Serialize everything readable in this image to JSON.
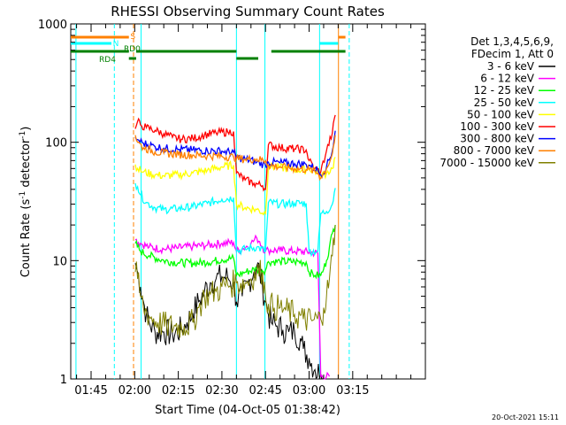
{
  "chart_data": {
    "type": "line",
    "title": "RHESSI Observing Summary Count Rates",
    "xlabel": "Start Time (04-Oct-05 01:38:42)",
    "ylabel": "Count Rate (s⁻¹ detector⁻¹)",
    "ylabel_parts": {
      "main": "Count Rate (s",
      "sup1": "-1",
      "mid": " detector",
      "sup2": "-1",
      "end": ")"
    },
    "yscale": "log",
    "ylim": [
      1,
      1000
    ],
    "xlim_min": [
      98,
      220
    ],
    "x_unit": "minutes after 00:00 UT",
    "xticks": [
      {
        "t": 105,
        "label": "01:45"
      },
      {
        "t": 120,
        "label": "02:00"
      },
      {
        "t": 135,
        "label": "02:15"
      },
      {
        "t": 150,
        "label": "02:30"
      },
      {
        "t": 165,
        "label": "02:45"
      },
      {
        "t": 180,
        "label": "03:00"
      },
      {
        "t": 195,
        "label": "03:15"
      }
    ],
    "yticks": [
      {
        "v": 1,
        "label": "1"
      },
      {
        "v": 10,
        "label": "10"
      },
      {
        "v": 100,
        "label": "100"
      },
      {
        "v": 1000,
        "label": "1000"
      }
    ],
    "legend_header": [
      "Det 1,3,4,5,6,9,",
      "FDecim 1, Att 0"
    ],
    "series": [
      {
        "name": "3 - 6 keV",
        "color": "#000000",
        "points": [
          [
            120.2,
            9.5
          ],
          [
            121,
            8
          ],
          [
            122,
            6
          ],
          [
            123,
            4.5
          ],
          [
            124,
            3.5
          ],
          [
            125,
            3
          ],
          [
            127,
            2.5
          ],
          [
            130,
            2.5
          ],
          [
            133,
            2.4
          ],
          [
            136,
            2.6
          ],
          [
            138,
            3
          ],
          [
            140,
            3.6
          ],
          [
            142,
            4.5
          ],
          [
            144,
            5.5
          ],
          [
            146,
            6.5
          ],
          [
            148,
            7
          ],
          [
            150,
            7.3
          ],
          [
            152,
            7.2
          ],
          [
            154,
            6.5
          ],
          [
            155,
            4.5
          ],
          [
            157,
            5
          ],
          [
            159,
            6.5
          ],
          [
            161,
            8
          ],
          [
            162,
            9
          ],
          [
            163,
            8
          ],
          [
            164,
            6
          ],
          [
            165,
            4.5
          ],
          [
            166,
            3.5
          ],
          [
            167,
            3
          ],
          [
            169,
            2.8
          ],
          [
            171,
            2.6
          ],
          [
            173,
            2.5
          ],
          [
            175,
            2.5
          ],
          [
            177,
            2.2
          ],
          [
            178,
            1.8
          ],
          [
            180,
            1.5
          ],
          [
            182,
            1.2
          ],
          [
            184,
            1.1
          ],
          [
            185,
            1.05
          ]
        ]
      },
      {
        "name": "6 - 12 keV",
        "color": "#ff00ff",
        "points": [
          [
            120.2,
            15
          ],
          [
            122,
            14
          ],
          [
            125,
            13
          ],
          [
            130,
            12.5
          ],
          [
            135,
            12.8
          ],
          [
            140,
            13.2
          ],
          [
            145,
            13.5
          ],
          [
            150,
            14
          ],
          [
            154,
            14.2
          ],
          [
            155,
            12
          ],
          [
            157,
            12.5
          ],
          [
            160,
            14
          ],
          [
            162,
            15.5
          ],
          [
            163,
            14.5
          ],
          [
            164,
            13
          ],
          [
            165,
            12
          ],
          [
            166,
            12.3
          ],
          [
            170,
            12.2
          ],
          [
            175,
            12
          ],
          [
            180,
            11.8
          ],
          [
            183,
            11.5
          ],
          [
            184,
            1.05
          ],
          [
            187,
            1.05
          ]
        ]
      },
      {
        "name": "12 - 25 keV",
        "color": "#00ff00",
        "points": [
          [
            120.2,
            14
          ],
          [
            122,
            12
          ],
          [
            125,
            11
          ],
          [
            130,
            10
          ],
          [
            135,
            9.6
          ],
          [
            140,
            9.5
          ],
          [
            145,
            9.7
          ],
          [
            150,
            10.2
          ],
          [
            154,
            10.5
          ],
          [
            155,
            7.5
          ],
          [
            158,
            8
          ],
          [
            162,
            8.5
          ],
          [
            165,
            8.3
          ],
          [
            166,
            9.8
          ],
          [
            170,
            9.8
          ],
          [
            175,
            9.8
          ],
          [
            179,
            9.7
          ],
          [
            180,
            8
          ],
          [
            182,
            7.5
          ],
          [
            184,
            7.5
          ],
          [
            185,
            8.5
          ],
          [
            186,
            10
          ],
          [
            187,
            13
          ],
          [
            188,
            17
          ],
          [
            189,
            20
          ]
        ]
      },
      {
        "name": "25 - 50 keV",
        "color": "#00ffff",
        "points": [
          [
            120.2,
            45
          ],
          [
            121,
            42
          ],
          [
            122,
            36
          ],
          [
            124,
            31
          ],
          [
            127,
            28
          ],
          [
            130,
            27
          ],
          [
            135,
            27.5
          ],
          [
            140,
            28.5
          ],
          [
            145,
            30.5
          ],
          [
            150,
            33
          ],
          [
            154,
            34
          ],
          [
            155,
            12
          ],
          [
            158,
            12.5
          ],
          [
            162,
            13
          ],
          [
            165,
            12
          ],
          [
            166,
            31
          ],
          [
            170,
            30
          ],
          [
            175,
            30.5
          ],
          [
            179,
            30.5
          ],
          [
            180,
            12
          ],
          [
            183,
            12
          ],
          [
            184,
            25
          ],
          [
            186,
            26
          ],
          [
            188,
            30
          ],
          [
            189,
            41
          ]
        ]
      },
      {
        "name": "50 - 100 keV",
        "color": "#ffff00",
        "points": [
          [
            120.2,
            65
          ],
          [
            121,
            60
          ],
          [
            123,
            56
          ],
          [
            127,
            53
          ],
          [
            130,
            52
          ],
          [
            135,
            53
          ],
          [
            140,
            55
          ],
          [
            145,
            58
          ],
          [
            150,
            62
          ],
          [
            154,
            64
          ],
          [
            155,
            30
          ],
          [
            158,
            28
          ],
          [
            162,
            27
          ],
          [
            165,
            25
          ],
          [
            166,
            63
          ],
          [
            170,
            61
          ],
          [
            175,
            59
          ],
          [
            179,
            58
          ],
          [
            180,
            60
          ],
          [
            183,
            56
          ],
          [
            184,
            52
          ],
          [
            186,
            55
          ],
          [
            188,
            60
          ],
          [
            189,
            75
          ]
        ]
      },
      {
        "name": "100 - 300 keV",
        "color": "#ff0000",
        "points": [
          [
            120.2,
            130
          ],
          [
            121,
            150
          ],
          [
            122,
            140
          ],
          [
            124,
            133
          ],
          [
            127,
            126
          ],
          [
            130,
            118
          ],
          [
            133,
            110
          ],
          [
            136,
            106
          ],
          [
            140,
            108
          ],
          [
            144,
            115
          ],
          [
            148,
            120
          ],
          [
            152,
            122
          ],
          [
            154,
            123
          ],
          [
            155,
            55
          ],
          [
            158,
            48
          ],
          [
            161,
            45
          ],
          [
            164,
            43
          ],
          [
            165,
            40
          ],
          [
            166,
            95
          ],
          [
            170,
            90
          ],
          [
            175,
            88
          ],
          [
            179,
            86
          ],
          [
            180,
            70
          ],
          [
            182,
            60
          ],
          [
            184,
            56
          ],
          [
            186,
            85
          ],
          [
            188,
            120
          ],
          [
            189,
            170
          ]
        ]
      },
      {
        "name": "300 - 800 keV",
        "color": "#0000ff",
        "points": [
          [
            120.2,
            110
          ],
          [
            121,
            105
          ],
          [
            123,
            98
          ],
          [
            127,
            92
          ],
          [
            130,
            89
          ],
          [
            135,
            87
          ],
          [
            140,
            86
          ],
          [
            145,
            85
          ],
          [
            150,
            84
          ],
          [
            154,
            82
          ],
          [
            155,
            75
          ],
          [
            158,
            72
          ],
          [
            162,
            68
          ],
          [
            165,
            64
          ],
          [
            166,
            68
          ],
          [
            170,
            67
          ],
          [
            175,
            66
          ],
          [
            179,
            65
          ],
          [
            180,
            64
          ],
          [
            183,
            58
          ],
          [
            184,
            53
          ],
          [
            186,
            62
          ],
          [
            188,
            85
          ],
          [
            189,
            125
          ]
        ]
      },
      {
        "name": "800 - 7000 keV",
        "color": "#ff8000",
        "points": [
          [
            120.2,
            115
          ],
          [
            121,
            100
          ],
          [
            123,
            90
          ],
          [
            127,
            83
          ],
          [
            130,
            81
          ],
          [
            135,
            79
          ],
          [
            140,
            78
          ],
          [
            145,
            77
          ],
          [
            150,
            76
          ],
          [
            154,
            75
          ],
          [
            155,
            73
          ],
          [
            158,
            72
          ],
          [
            162,
            72
          ],
          [
            165,
            70
          ],
          [
            166,
            64
          ],
          [
            170,
            62
          ],
          [
            175,
            60
          ],
          [
            179,
            59
          ],
          [
            180,
            59
          ],
          [
            183,
            55
          ],
          [
            184,
            50
          ],
          [
            186,
            60
          ],
          [
            188,
            80
          ],
          [
            189,
            115
          ]
        ]
      },
      {
        "name": "7000 - 15000 keV",
        "color": "#808000",
        "points": [
          [
            120.2,
            8
          ],
          [
            121,
            7
          ],
          [
            122,
            5
          ],
          [
            123,
            4
          ],
          [
            125,
            3.4
          ],
          [
            128,
            3
          ],
          [
            131,
            2.8
          ],
          [
            134,
            2.8
          ],
          [
            137,
            2.8
          ],
          [
            140,
            3
          ],
          [
            142,
            4
          ],
          [
            144,
            5
          ],
          [
            146,
            5.2
          ],
          [
            148,
            5.5
          ],
          [
            150,
            6
          ],
          [
            152,
            6.2
          ],
          [
            155,
            6.5
          ],
          [
            158,
            6.5
          ],
          [
            160,
            7
          ],
          [
            162,
            8
          ],
          [
            164,
            8
          ],
          [
            165,
            5
          ],
          [
            166,
            4.3
          ],
          [
            168,
            4
          ],
          [
            170,
            4
          ],
          [
            172,
            3.8
          ],
          [
            175,
            3.5
          ],
          [
            178,
            3.2
          ],
          [
            181,
            3.1
          ],
          [
            184,
            3.2
          ],
          [
            185,
            4
          ],
          [
            186,
            5
          ],
          [
            187,
            7
          ],
          [
            188,
            11
          ],
          [
            189,
            20
          ]
        ]
      }
    ],
    "status_flags": {
      "S": {
        "label": "S",
        "color": "#ff8000",
        "segments": [
          [
            98,
            118
          ],
          [
            190,
            192.5
          ]
        ]
      },
      "N": {
        "label": "N",
        "color": "#00ffff",
        "segments": [
          [
            98,
            112
          ],
          [
            183.5,
            190
          ]
        ]
      },
      "RD": {
        "color": "#008000",
        "labels": [
          {
            "t": 113.5,
            "text": "RD4"
          },
          {
            "t": 122,
            "text": "RD0"
          }
        ],
        "high": [
          [
            98,
            118
          ],
          [
            120.5,
            155
          ],
          [
            167,
            192.5
          ]
        ],
        "low": [
          [
            118,
            120.5
          ],
          [
            155,
            162.5
          ]
        ]
      }
    },
    "vertical_markers": [
      {
        "t": 99.8,
        "color": "#00ffff",
        "dashed": false
      },
      {
        "t": 113,
        "color": "#00ffff",
        "dashed": true
      },
      {
        "t": 119.6,
        "color": "#ff8000",
        "dashed": true
      },
      {
        "t": 122.2,
        "color": "#00ffff",
        "dashed": false
      },
      {
        "t": 155,
        "color": "#00ffff",
        "dashed": false
      },
      {
        "t": 164.8,
        "color": "#00ffff",
        "dashed": false
      },
      {
        "t": 183.6,
        "color": "#00ffff",
        "dashed": false
      },
      {
        "t": 190.1,
        "color": "#ff8000",
        "dashed": false
      },
      {
        "t": 193.8,
        "color": "#00ffff",
        "dashed": true
      }
    ],
    "footer_date": "20-Oct-2021 15:11"
  }
}
